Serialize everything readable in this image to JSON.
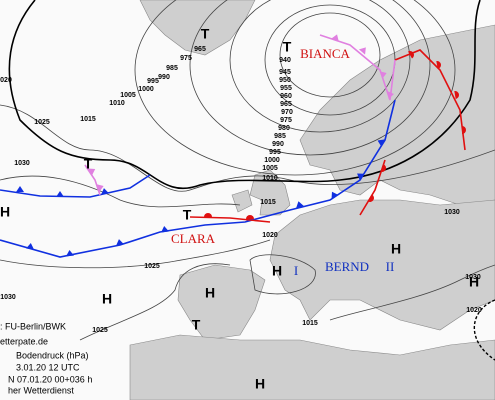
{
  "pressure_centers": [
    "T",
    "T",
    "T",
    "T",
    "H",
    "H",
    "H",
    "H",
    "H",
    "H",
    "T",
    "H"
  ],
  "system_names": [
    "BIANCA",
    "CLARA",
    "BERND",
    "I",
    "II"
  ],
  "isobar_labels": [
    965,
    975,
    985,
    990,
    995,
    1000,
    1005,
    1010,
    "020",
    1025,
    1015,
    1030,
    940,
    945,
    950,
    955,
    960,
    965,
    970,
    975,
    980,
    985,
    990,
    995,
    1000,
    1005,
    1010,
    1015,
    1020,
    1025,
    1030,
    1030,
    1020,
    1015,
    1025,
    1030,
    30
  ],
  "credits": [
    ": FU-Berlin/BWK",
    "etterpate.de",
    "Bodendruck (hPa)",
    "3.01.20 12 UTC",
    "N  07.01.20 00+036 h",
    "her Wetterdienst"
  ]
}
